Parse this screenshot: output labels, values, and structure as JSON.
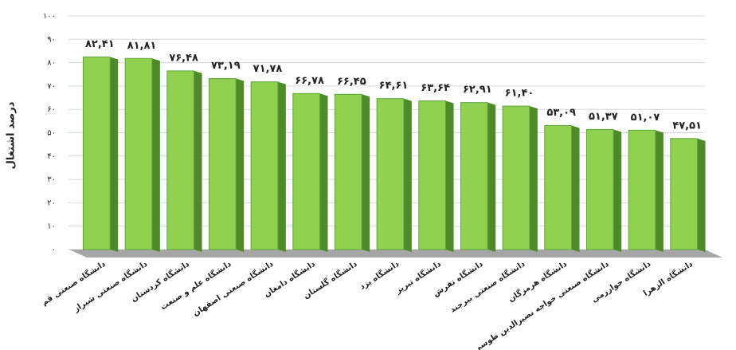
{
  "chart_data": {
    "type": "bar",
    "y_label": "درصد اشتغال",
    "categories": [
      "دانشگاه صنعتی قم",
      "دانشگاه صنعتی شیراز",
      "دانشگاه کردستان",
      "دانشگاه علم و صنعت",
      "دانشگاه صنعتی اصفهان",
      "دانشگاه دامغان",
      "دانشگاه گلستان",
      "دانشگاه یزد",
      "دانشگاه تبریز",
      "دانشگاه تفرش",
      "دانشگاه صنعتی بیرجند",
      "دانشگاه هرمزگان",
      "دانشگاه صنعتی خواجه نصیرالدین طوسی",
      "دانشگاه خوارزمی",
      "دانشگاه الزهرا"
    ],
    "values": [
      82.41,
      81.81,
      76.48,
      73.19,
      71.78,
      66.78,
      66.45,
      64.61,
      63.64,
      62.91,
      61.4,
      53.09,
      51.37,
      51.07,
      47.51
    ],
    "value_labels": [
      "۸۲,۴۱",
      "۸۱,۸۱",
      "۷۶,۴۸",
      "۷۳,۱۹",
      "۷۱,۷۸",
      "۶۶,۷۸",
      "۶۶,۴۵",
      "۶۴,۶۱",
      "۶۳,۶۴",
      "۶۲,۹۱",
      "۶۱,۴۰",
      "۵۳,۰۹",
      "۵۱,۳۷",
      "۵۱,۰۷",
      "۴۷,۵۱"
    ],
    "color": "#92d050",
    "ylim": [
      0,
      100
    ],
    "yticks": [
      {
        "value": 0,
        "label": "۰"
      },
      {
        "value": 10,
        "label": "۱۰"
      },
      {
        "value": 20,
        "label": "۲۰"
      },
      {
        "value": 30,
        "label": "۳۰"
      },
      {
        "value": 40,
        "label": "۴۰"
      },
      {
        "value": 50,
        "label": "۵۰"
      },
      {
        "value": 60,
        "label": "۶۰"
      },
      {
        "value": 70,
        "label": "۷۰"
      },
      {
        "value": 80,
        "label": "۸۰"
      },
      {
        "value": 90,
        "label": "۹۰"
      },
      {
        "value": 100,
        "label": "۱۰۰"
      }
    ],
    "grid": true
  }
}
